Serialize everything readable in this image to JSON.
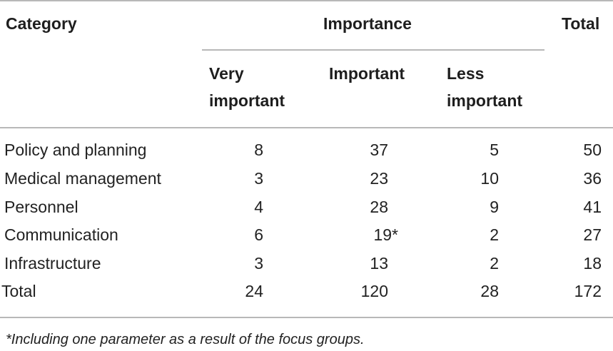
{
  "table": {
    "headers": {
      "category": "Category",
      "importance": "Importance",
      "total": "Total",
      "very_important_line1": "Very",
      "very_important_line2": "important",
      "important": "Important",
      "less_important_line1": "Less",
      "less_important_line2": "important"
    },
    "rows": [
      {
        "category": "Policy and planning",
        "very": "8",
        "important": "37",
        "less": "5",
        "total": "50"
      },
      {
        "category": "Medical management",
        "very": "3",
        "important": "23",
        "less": "10",
        "total": "36"
      },
      {
        "category": "Personnel",
        "very": "4",
        "important": "28",
        "less": "9",
        "total": "41"
      },
      {
        "category": "Communication",
        "very": "6",
        "important": "19*",
        "less": "2",
        "total": "27"
      },
      {
        "category": "Infrastructure",
        "very": "3",
        "important": "13",
        "less": "2",
        "total": "18"
      },
      {
        "category": "Total",
        "very": "24",
        "important": "120",
        "less": "28",
        "total": "172"
      }
    ],
    "footnote": "*Including one parameter as a result of the focus groups."
  }
}
